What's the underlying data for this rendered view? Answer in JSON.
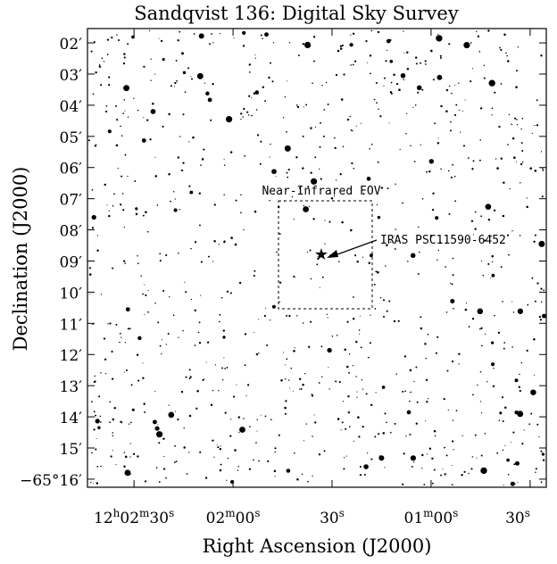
{
  "chart_data": {
    "type": "image",
    "title": "Sandqvist 136: Digital Sky Survey",
    "xlabel": "Right Ascension (J2000)",
    "ylabel": "Declination (J2000)",
    "annotations": [
      "Near-Infrared FOV",
      "IRAS PSC11590-6452"
    ],
    "xlim": [
      15.9,
      154.9
    ],
    "xticks": [
      {
        "value": 30,
        "label": "12h02m30s"
      },
      {
        "value": 60,
        "label": "02m00s"
      },
      {
        "value": 90,
        "label": "30s"
      },
      {
        "value": 120,
        "label": "01m00s"
      },
      {
        "value": 150,
        "label": "30s"
      }
    ],
    "ylim": [
      1.54,
      16.26
    ],
    "yticks": [
      {
        "value": 2,
        "label": "02′"
      },
      {
        "value": 3,
        "label": "03′"
      },
      {
        "value": 4,
        "label": "04′"
      },
      {
        "value": 5,
        "label": "05′"
      },
      {
        "value": 6,
        "label": "06′"
      },
      {
        "value": 7,
        "label": "07′"
      },
      {
        "value": 8,
        "label": "08′"
      },
      {
        "value": 9,
        "label": "09′"
      },
      {
        "value": 10,
        "label": "10′"
      },
      {
        "value": 11,
        "label": "11′"
      },
      {
        "value": 12,
        "label": "12′"
      },
      {
        "value": 13,
        "label": "13′"
      },
      {
        "value": 14,
        "label": "14′"
      },
      {
        "value": 15,
        "label": "15′"
      },
      {
        "value": 16,
        "label": "−65°16′"
      }
    ]
  }
}
